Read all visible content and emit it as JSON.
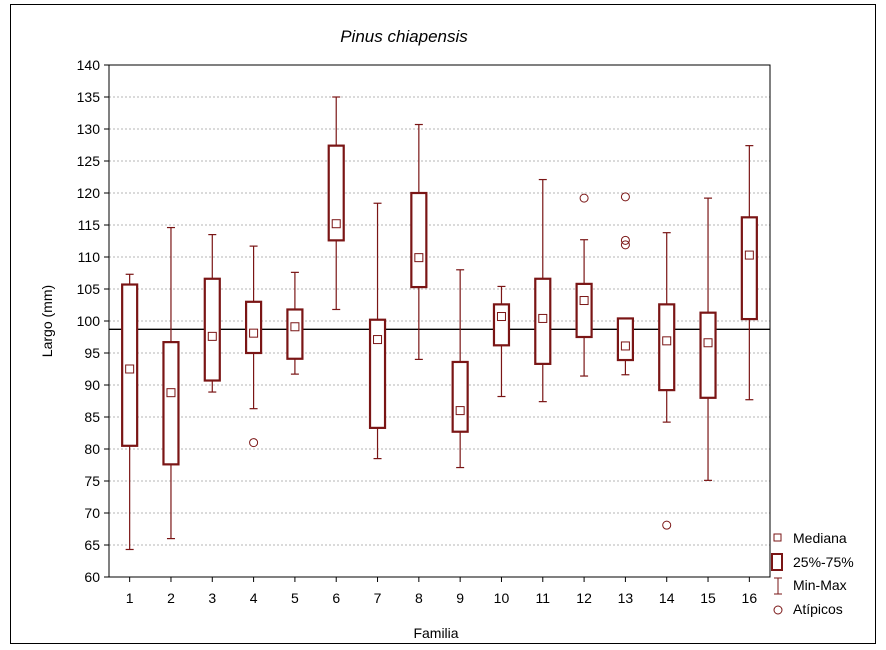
{
  "chart_data": {
    "type": "boxplot",
    "title": "Pinus chiapensis",
    "xlabel": "Familia",
    "ylabel": "Largo (mm)",
    "ylim": [
      60,
      140
    ],
    "yticks": [
      60,
      65,
      70,
      75,
      80,
      85,
      90,
      95,
      100,
      105,
      110,
      115,
      120,
      125,
      130,
      135,
      140
    ],
    "categories": [
      "1",
      "2",
      "3",
      "4",
      "5",
      "6",
      "7",
      "8",
      "9",
      "10",
      "11",
      "12",
      "13",
      "14",
      "15",
      "16"
    ],
    "reference_line": 98.7,
    "grid": "horizontal dashed",
    "legend_position": "bottom-right",
    "legend": [
      "Mediana",
      "25%-75%",
      "Min-Max",
      "Atípicos"
    ],
    "colors": {
      "box": "#7a1515",
      "reference_line": "#000000",
      "grid": "#b4b4b4"
    },
    "boxes": [
      {
        "family": "1",
        "min": 64.3,
        "q1": 80.5,
        "median": 92.5,
        "q3": 105.7,
        "max": 107.3,
        "outliers": []
      },
      {
        "family": "2",
        "min": 66.0,
        "q1": 77.6,
        "median": 88.8,
        "q3": 96.7,
        "max": 114.6,
        "outliers": []
      },
      {
        "family": "3",
        "min": 88.9,
        "q1": 90.7,
        "median": 97.6,
        "q3": 106.6,
        "max": 113.5,
        "outliers": []
      },
      {
        "family": "4",
        "min": 86.3,
        "q1": 95.0,
        "median": 98.1,
        "q3": 103.0,
        "max": 111.7,
        "outliers": [
          81.0
        ]
      },
      {
        "family": "5",
        "min": 91.7,
        "q1": 94.1,
        "median": 99.1,
        "q3": 101.8,
        "max": 107.6,
        "outliers": []
      },
      {
        "family": "6",
        "min": 101.8,
        "q1": 112.6,
        "median": 115.2,
        "q3": 127.4,
        "max": 135.0,
        "outliers": []
      },
      {
        "family": "7",
        "min": 78.5,
        "q1": 83.3,
        "median": 97.1,
        "q3": 100.2,
        "max": 118.4,
        "outliers": []
      },
      {
        "family": "8",
        "min": 94.0,
        "q1": 105.3,
        "median": 109.9,
        "q3": 120.0,
        "max": 130.7,
        "outliers": []
      },
      {
        "family": "9",
        "min": 77.1,
        "q1": 82.7,
        "median": 86.0,
        "q3": 93.6,
        "max": 108.0,
        "outliers": []
      },
      {
        "family": "10",
        "min": 88.2,
        "q1": 96.2,
        "median": 100.7,
        "q3": 102.6,
        "max": 105.4,
        "outliers": []
      },
      {
        "family": "11",
        "min": 87.4,
        "q1": 93.3,
        "median": 100.4,
        "q3": 106.6,
        "max": 122.1,
        "outliers": []
      },
      {
        "family": "12",
        "min": 91.4,
        "q1": 97.5,
        "median": 103.2,
        "q3": 105.8,
        "max": 112.7,
        "outliers": [
          119.2
        ]
      },
      {
        "family": "13",
        "min": 91.6,
        "q1": 93.9,
        "median": 96.1,
        "q3": 100.4,
        "max": 100.4,
        "outliers": [
          119.4,
          112.6,
          111.9
        ]
      },
      {
        "family": "14",
        "min": 84.2,
        "q1": 89.2,
        "median": 96.9,
        "q3": 102.6,
        "max": 113.8,
        "outliers": [
          68.1
        ]
      },
      {
        "family": "15",
        "min": 75.1,
        "q1": 88.0,
        "median": 96.6,
        "q3": 101.3,
        "max": 119.2,
        "outliers": []
      },
      {
        "family": "16",
        "min": 87.7,
        "q1": 100.3,
        "median": 110.3,
        "q3": 116.2,
        "max": 127.4,
        "outliers": []
      }
    ]
  }
}
